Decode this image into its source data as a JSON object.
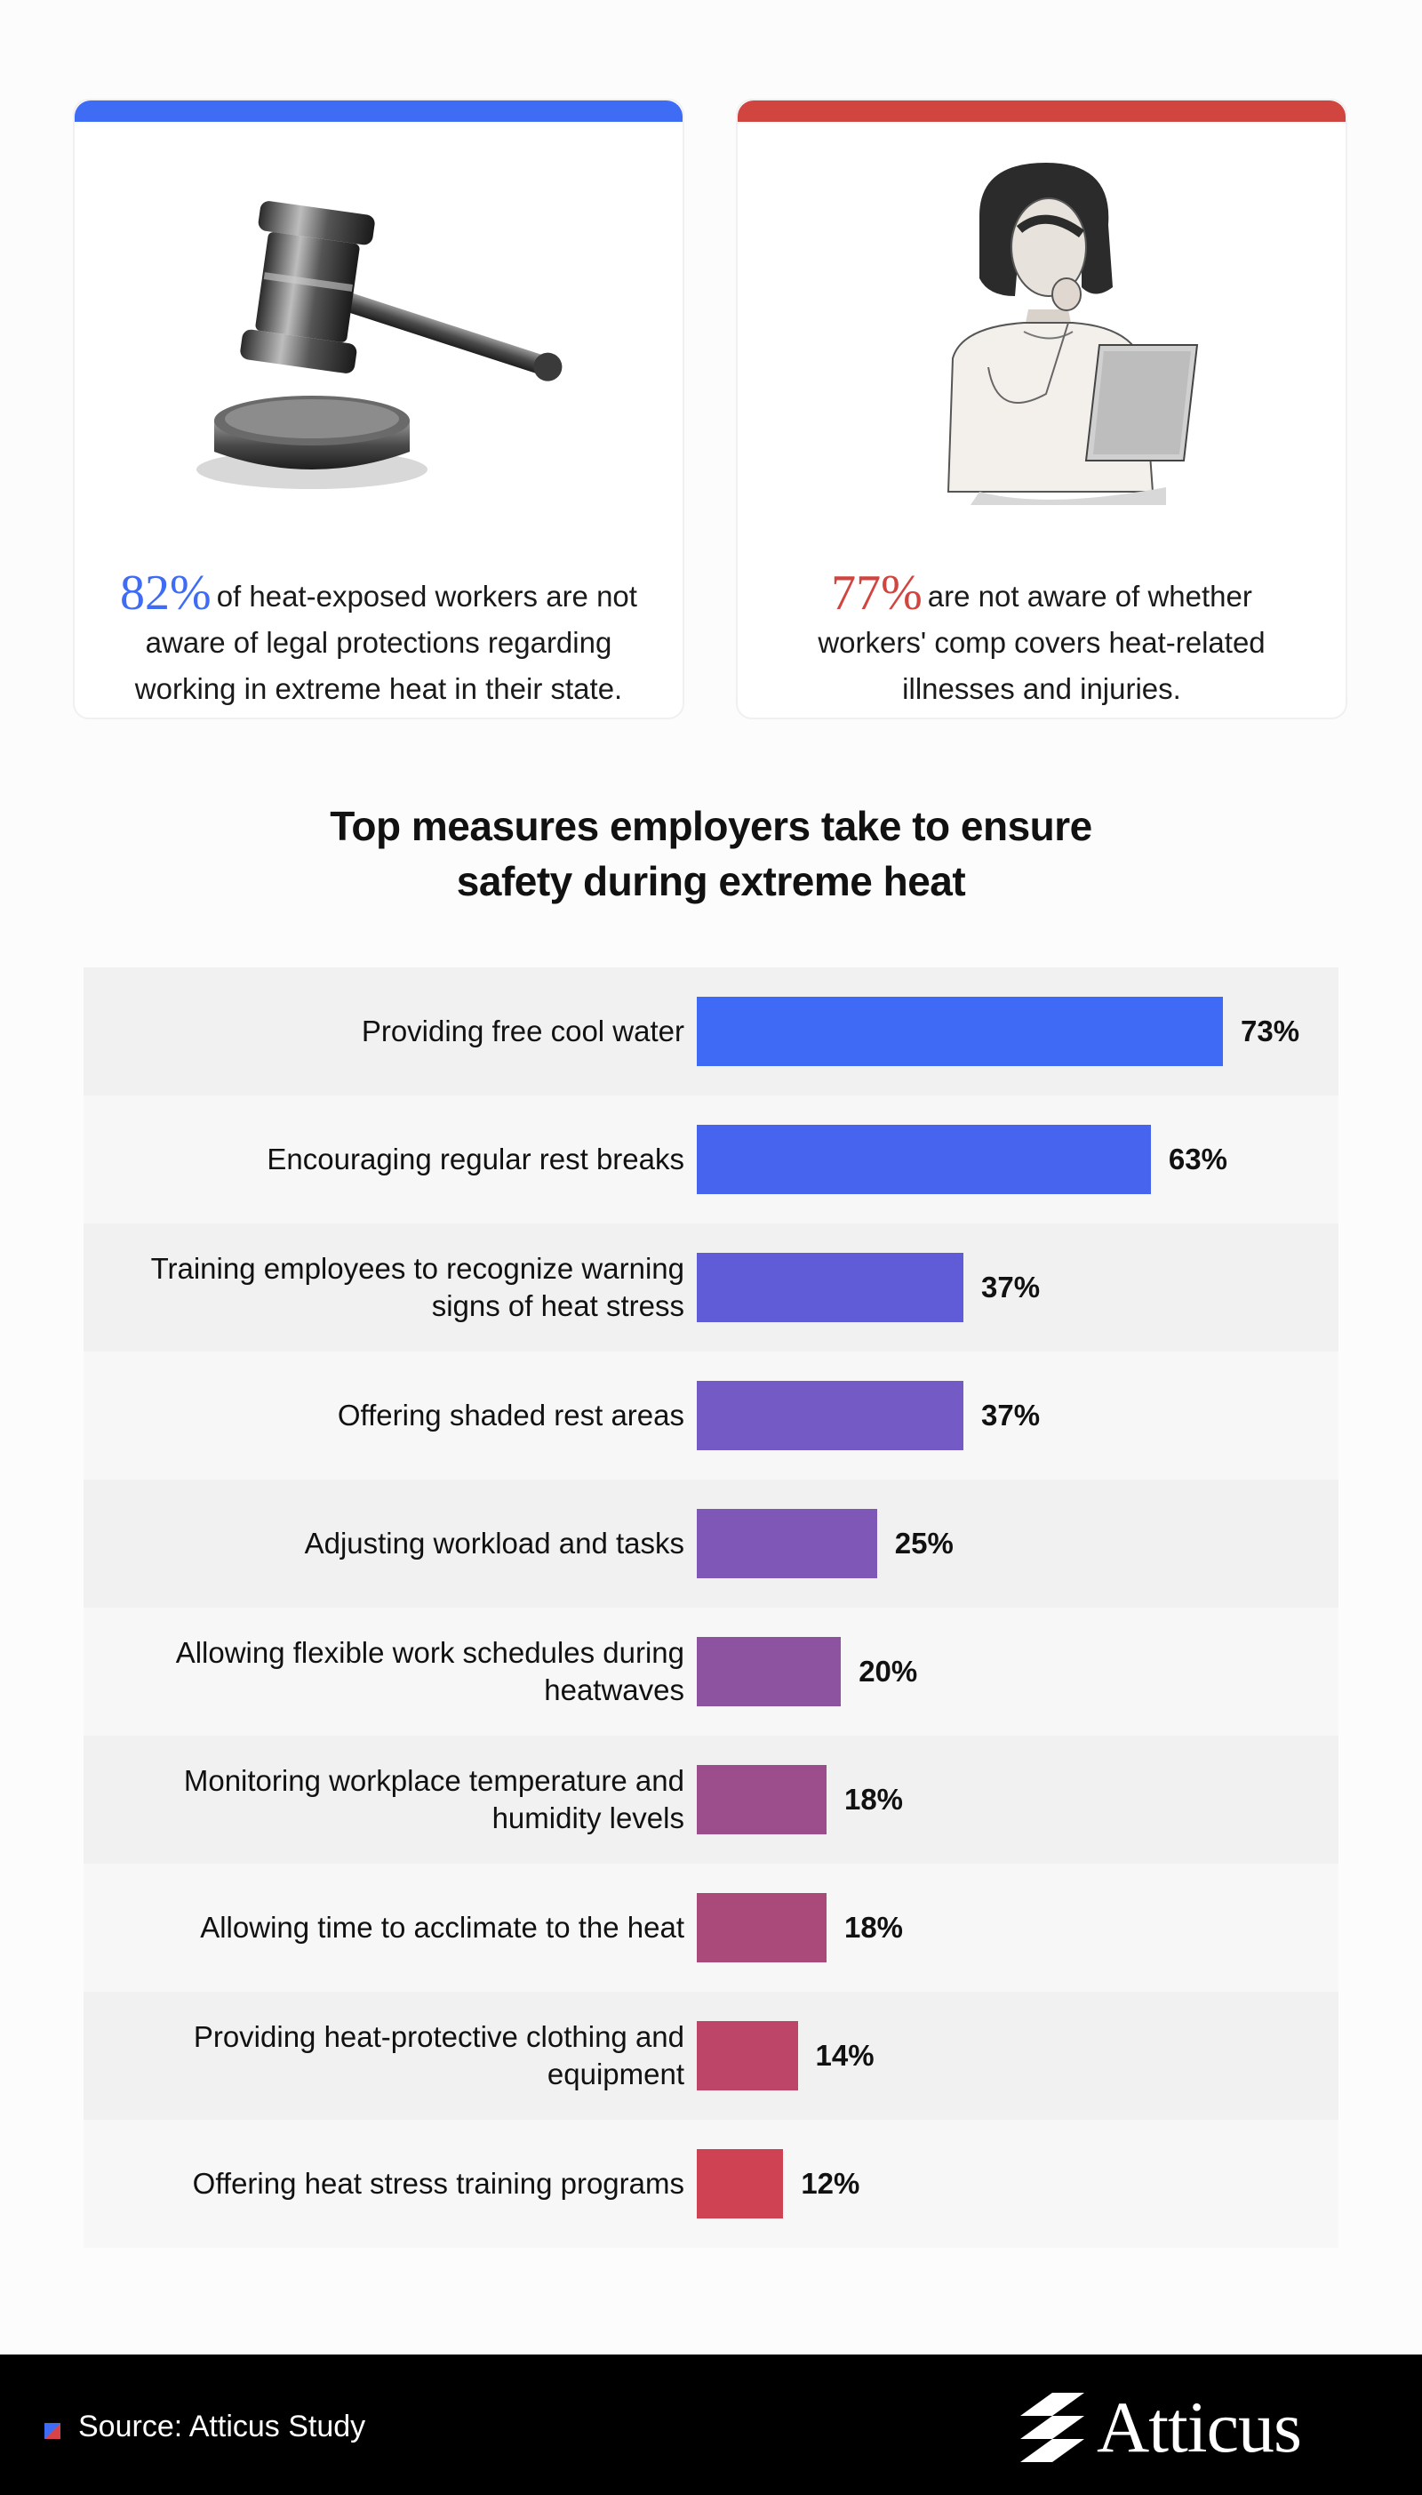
{
  "colors": {
    "blue_accent": "#3f6cf5",
    "red_accent": "#d0453f",
    "row_alt_dark": "#f1f1f1",
    "row_alt_light": "#f7f7f7"
  },
  "cards": [
    {
      "pct": "82%",
      "text": "of heat-exposed workers are not aware of legal protections regarding working in extreme heat in their state.",
      "accent": "#3f6cf5",
      "icon": "gavel-icon"
    },
    {
      "pct": "77%",
      "text": "are not aware of whether workers' comp covers heat-related illnesses and injuries.",
      "accent": "#d0453f",
      "icon": "woman-laptop-illustration"
    }
  ],
  "chart_title": "Top measures employers take to ensure safety during extreme heat",
  "chart_data": {
    "type": "bar",
    "orientation": "horizontal",
    "title": "Top measures employers take to ensure safety during extreme heat",
    "categories": [
      "Providing free cool water",
      "Encouraging regular rest breaks",
      "Training employees to recognize warning signs of heat stress",
      "Offering shaded rest areas",
      "Adjusting workload and tasks",
      "Allowing flexible work schedules during heatwaves",
      "Monitoring workplace temperature and humidity levels",
      "Allowing time to acclimate to the heat",
      "Providing heat-protective clothing and equipment",
      "Offering heat stress training programs"
    ],
    "values": [
      73,
      63,
      37,
      37,
      25,
      20,
      18,
      18,
      14,
      12
    ],
    "value_labels": [
      "73%",
      "63%",
      "37%",
      "37%",
      "25%",
      "20%",
      "18%",
      "18%",
      "14%",
      "12%"
    ],
    "bar_colors": [
      "#3e6af6",
      "#4664ee",
      "#605cd8",
      "#735ac4",
      "#7f57b6",
      "#8d52a0",
      "#9b4d8c",
      "#aa4a7a",
      "#bc4568",
      "#cf4253"
    ],
    "xlim": [
      0,
      100
    ],
    "grid": false,
    "legend": "none"
  },
  "footer": {
    "source": "Source: Atticus Study",
    "logo_text": "Atticus"
  }
}
